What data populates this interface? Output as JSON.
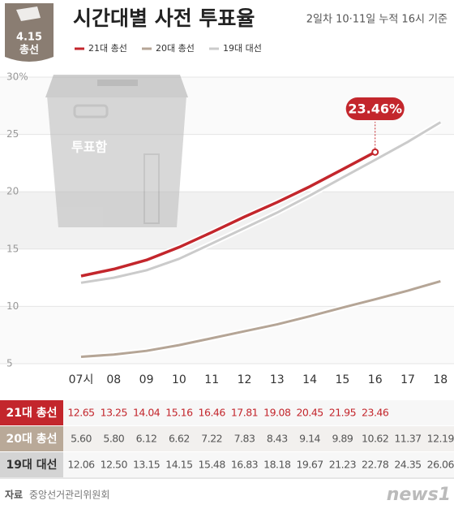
{
  "chart_data": {
    "type": "line",
    "title": "시간대별 사전 투표율",
    "subtitle": "2일차 10·11일 누적 16시 기준",
    "badge": [
      "4.15",
      "총선"
    ],
    "illustration_label": "투표함",
    "categories": [
      "07시",
      "08",
      "09",
      "10",
      "11",
      "12",
      "13",
      "14",
      "15",
      "16",
      "17",
      "18"
    ],
    "series": [
      {
        "name": "21대 총선",
        "color": "#c3262c",
        "values": [
          12.65,
          13.25,
          14.04,
          15.16,
          16.46,
          17.81,
          19.08,
          20.45,
          21.95,
          23.46,
          null,
          null
        ],
        "value_labels": [
          "12.65",
          "13.25",
          "14.04",
          "15.16",
          "16.46",
          "17.81",
          "19.08",
          "20.45",
          "21.95",
          "23.46",
          null,
          null
        ]
      },
      {
        "name": "20대 총선",
        "color": "#b5a596",
        "values": [
          5.6,
          5.8,
          6.12,
          6.62,
          7.22,
          7.83,
          8.43,
          9.14,
          9.89,
          10.62,
          11.37,
          12.19
        ],
        "value_labels": [
          "5.60",
          "5.80",
          "6.12",
          "6.62",
          "7.22",
          "7.83",
          "8.43",
          "9.14",
          "9.89",
          "10.62",
          "11.37",
          "12.19"
        ]
      },
      {
        "name": "19대 대선",
        "color": "#cbcbcb",
        "values": [
          12.06,
          12.5,
          13.15,
          14.15,
          15.48,
          16.83,
          18.18,
          19.67,
          21.23,
          22.78,
          24.35,
          26.06
        ],
        "value_labels": [
          "12.06",
          "12.50",
          "13.15",
          "14.15",
          "15.48",
          "16.83",
          "18.18",
          "19.67",
          "21.23",
          "22.78",
          "24.35",
          "26.06"
        ]
      }
    ],
    "annotation": "23.46%",
    "ylim": [
      5,
      30
    ],
    "yticks": [
      5,
      10,
      15,
      20,
      25,
      {
        "value": 30,
        "label": "30%"
      }
    ],
    "source_label": "자료",
    "source": "중앙선거관리위원회",
    "logo": "news1"
  }
}
